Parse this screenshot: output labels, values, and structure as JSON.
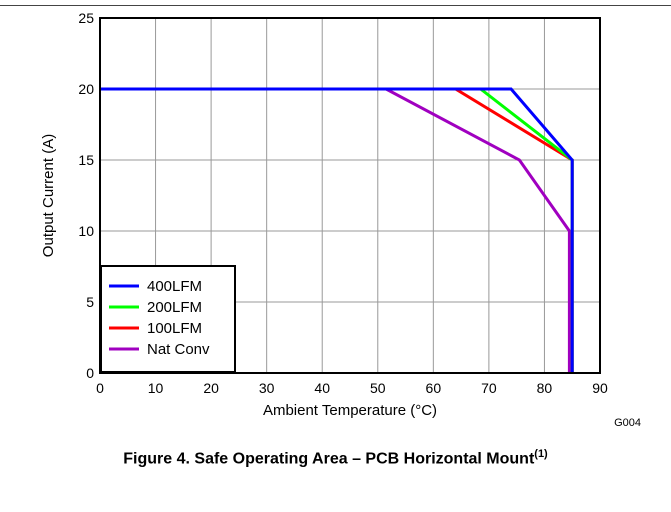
{
  "chart_data": {
    "type": "line",
    "xlabel": "Ambient Temperature (°C)",
    "ylabel": "Output Current (A)",
    "xlim": [
      0,
      90
    ],
    "ylim": [
      0,
      25
    ],
    "x_ticks": [
      0,
      10,
      20,
      30,
      40,
      50,
      60,
      70,
      80,
      90
    ],
    "y_ticks": [
      0,
      5,
      10,
      15,
      20,
      25
    ],
    "grid": true,
    "legend_position": "bottom-left",
    "series": [
      {
        "name": "400LFM",
        "color": "#0000ff",
        "points": [
          [
            0,
            20
          ],
          [
            74,
            20
          ],
          [
            85,
            15
          ],
          [
            85,
            0
          ]
        ]
      },
      {
        "name": "200LFM",
        "color": "#00ff00",
        "points": [
          [
            0,
            20
          ],
          [
            68.5,
            20
          ],
          [
            85,
            15
          ],
          [
            85,
            0
          ]
        ]
      },
      {
        "name": "100LFM",
        "color": "#ff0000",
        "points": [
          [
            0,
            20
          ],
          [
            64,
            20
          ],
          [
            85,
            15
          ],
          [
            85,
            0
          ]
        ]
      },
      {
        "name": "Nat Conv",
        "color": "#a000c0",
        "points": [
          [
            0,
            20
          ],
          [
            51.5,
            20
          ],
          [
            75.5,
            15
          ],
          [
            84.5,
            10
          ],
          [
            84.5,
            0
          ]
        ]
      }
    ]
  },
  "figure_id": "G004",
  "caption": {
    "text": "Figure 4. Safe Operating Area – PCB Horizontal Mount",
    "superscript": "(1)"
  }
}
